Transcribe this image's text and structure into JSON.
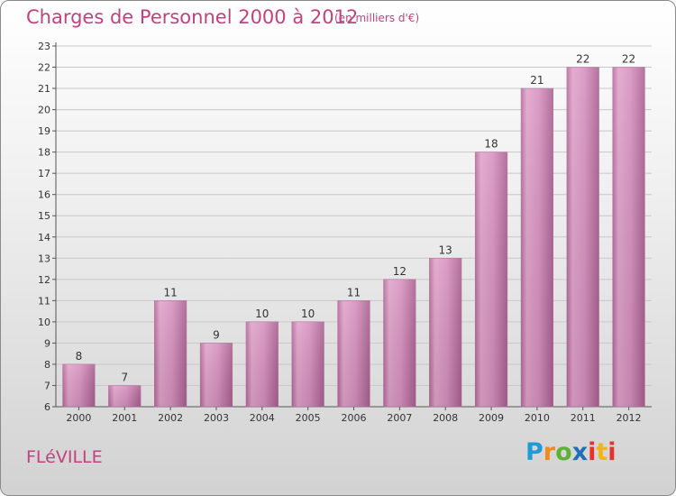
{
  "header": {
    "title": "Charges de Personnel 2000 à 2012",
    "subtitle": "(en milliers d'€)"
  },
  "footer": {
    "place": "FLéVILLE",
    "brand": "Proxiti",
    "brand_colors": [
      "#1f9bd7",
      "#f08a1c",
      "#5fb231",
      "#1f6fb5",
      "#e6332a",
      "#f0b51c"
    ]
  },
  "chart_data": {
    "type": "bar",
    "title": "Charges de Personnel 2000 à 2012",
    "subtitle": "(en milliers d'€)",
    "xlabel": "",
    "ylabel": "",
    "categories": [
      "2000",
      "2001",
      "2002",
      "2003",
      "2004",
      "2005",
      "2006",
      "2007",
      "2008",
      "2009",
      "2010",
      "2011",
      "2012"
    ],
    "values": [
      8,
      7,
      11,
      9,
      10,
      10,
      11,
      12,
      13,
      18,
      21,
      22,
      22
    ],
    "ylim": [
      6,
      23
    ],
    "yticks": [
      6,
      7,
      8,
      9,
      10,
      11,
      12,
      13,
      14,
      15,
      16,
      17,
      18,
      19,
      20,
      21,
      22,
      23
    ],
    "grid": true,
    "bar_color": "#d48ab8"
  }
}
